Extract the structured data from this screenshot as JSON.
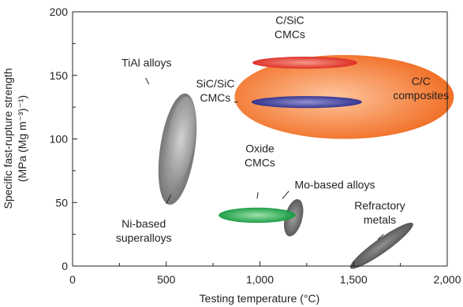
{
  "chart_data": {
    "type": "scatter",
    "title": "",
    "xlabel": "Testing temperature (°C)",
    "ylabel_line1": "Specific fast-rupture strength",
    "ylabel_line2": "(MPa (Mg m⁻³)⁻¹)",
    "xlim": [
      0,
      2000
    ],
    "ylim": [
      0,
      200
    ],
    "x_ticks": [
      {
        "value": 0,
        "label": "0"
      },
      {
        "value": 500,
        "label": "500"
      },
      {
        "value": 1000,
        "label": "1,000"
      },
      {
        "value": 1500,
        "label": "1,500"
      },
      {
        "value": 2000,
        "label": "2,000"
      }
    ],
    "y_ticks": [
      {
        "value": 0,
        "label": "0"
      },
      {
        "value": 50,
        "label": "50"
      },
      {
        "value": 100,
        "label": "100"
      },
      {
        "value": 150,
        "label": "150"
      },
      {
        "value": 200,
        "label": "200"
      }
    ],
    "grid": false,
    "regions": [
      {
        "name": "Ni-based superalloys",
        "label_lines": [
          "Ni-based",
          "superalloys"
        ],
        "color": "#7a7a7a",
        "center": [
          560,
          92
        ],
        "radius": [
          565,
          22
        ],
        "angle_deg": 45,
        "label_at": [
          380,
          28
        ],
        "leader": [
          [
            500,
            49
          ],
          [
            525,
            56
          ]
        ]
      },
      {
        "name": "TiAl alloys",
        "label_lines": [
          "TiAl alloys"
        ],
        "color": "#a0a0a0",
        "center": [
          580,
          100
        ],
        "radius": [
          430,
          17
        ],
        "angle_deg": 47,
        "label_at": [
          395,
          160
        ],
        "leader": [
          [
            390,
            148
          ],
          [
            408,
            143
          ]
        ]
      },
      {
        "name": "Mo-based alloys",
        "label_lines": [
          "Mo-based alloys"
        ],
        "color": "#6a6a6a",
        "center": [
          1180,
          38
        ],
        "radius": [
          190,
          11
        ],
        "angle_deg": 30,
        "label_at": [
          1400,
          64
        ],
        "leader": [
          [
            1120,
            53
          ],
          [
            1155,
            59
          ]
        ]
      },
      {
        "name": "Refractory metals",
        "label_lines": [
          "Refractory",
          "metals"
        ],
        "color": "#5e5e5e",
        "center": [
          1650,
          16
        ],
        "radius": [
          380,
          9
        ],
        "angle_deg": 6,
        "label_at": [
          1640,
          42
        ],
        "leader": [
          [
            1630,
            21
          ],
          [
            1660,
            25
          ]
        ]
      },
      {
        "name": "C/C composites",
        "label_lines": [
          "C/C",
          "composites"
        ],
        "color": "#f07a2e",
        "center": [
          1450,
          133
        ],
        "radius": [
          585,
          33
        ],
        "angle_deg": 0,
        "label_at": [
          1860,
          140
        ],
        "leader": []
      },
      {
        "name": "C/SiC CMCs",
        "label_lines": [
          "C/SiC",
          "CMCs"
        ],
        "color": "#e0352f",
        "center": [
          1240,
          160
        ],
        "radius": [
          280,
          4.7
        ],
        "angle_deg": 0,
        "label_at": [
          1160,
          188
        ],
        "leader": []
      },
      {
        "name": "SiC/SiC CMCs",
        "label_lines": [
          "SiC/SiC",
          "CMCs"
        ],
        "color": "#3b3d9d",
        "center": [
          1250,
          129
        ],
        "radius": [
          295,
          4.7
        ],
        "angle_deg": 0,
        "label_at": [
          762,
          138
        ],
        "leader": [
          [
            862,
            129
          ],
          [
            882,
            129
          ]
        ]
      },
      {
        "name": "Oxide CMCs",
        "label_lines": [
          "Oxide",
          "CMCs"
        ],
        "color": "#1ea54a",
        "center": [
          985,
          40
        ],
        "radius": [
          205,
          6
        ],
        "angle_deg": 0,
        "label_at": [
          1000,
          87
        ],
        "leader": [
          [
            985,
            53
          ],
          [
            990,
            58
          ]
        ]
      }
    ]
  }
}
